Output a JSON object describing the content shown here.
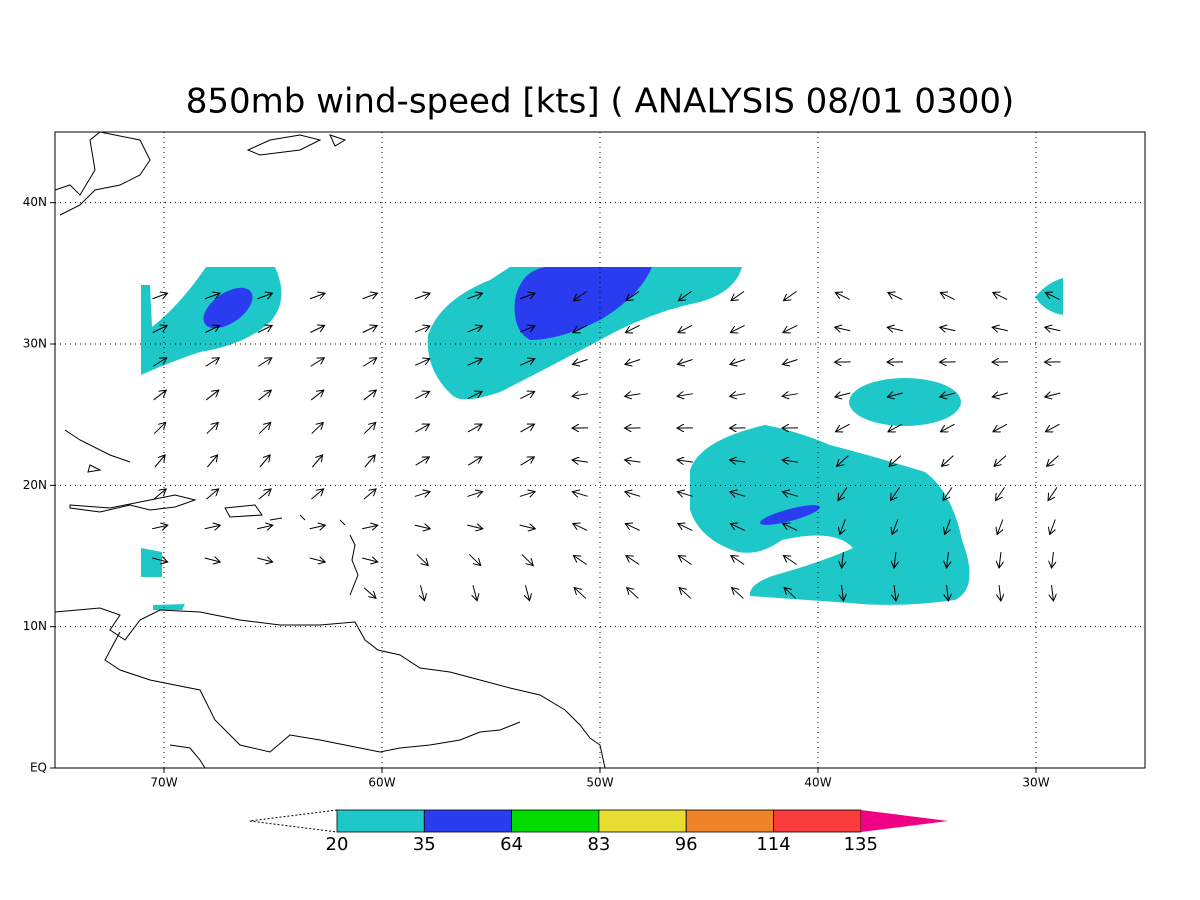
{
  "map": {
    "type": "wind-speed-map",
    "title": "850mb wind-speed [kts] ( ANALYSIS 08/01 0300)",
    "xlim": [
      -75,
      -25
    ],
    "ylim": [
      0,
      45
    ],
    "xticks": [
      {
        "value": -70,
        "label": "70W"
      },
      {
        "value": -60,
        "label": "60W"
      },
      {
        "value": -50,
        "label": "50W"
      },
      {
        "value": -40,
        "label": "40W"
      },
      {
        "value": -30,
        "label": "30W"
      }
    ],
    "yticks": [
      {
        "value": 0,
        "label": "EQ"
      },
      {
        "value": 10,
        "label": "10N"
      },
      {
        "value": 20,
        "label": "20N"
      },
      {
        "value": 30,
        "label": "30N"
      },
      {
        "value": 40,
        "label": "40N"
      }
    ],
    "grid": true,
    "colorbar": {
      "levels": [
        20,
        35,
        64,
        83,
        96,
        114,
        135
      ],
      "colors": [
        "#1ec8c8",
        "#2a3cf0",
        "#00dc00",
        "#e6dc32",
        "#f08228",
        "#fa3c3c",
        "#f00082"
      ]
    }
  }
}
